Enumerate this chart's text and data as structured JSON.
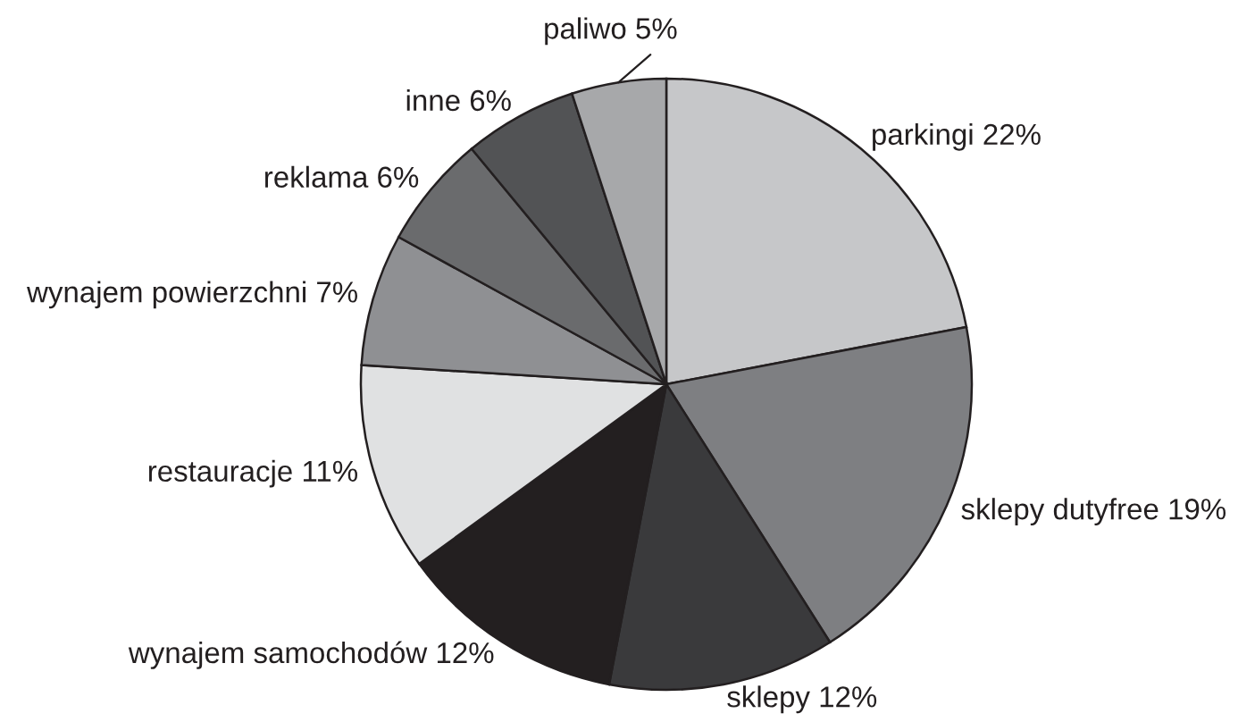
{
  "chart_data": {
    "type": "pie",
    "categories": [
      "parkingi",
      "sklepy dutyfree",
      "sklepy",
      "wynajem samochodów",
      "restauracje",
      "wynajem powierzchni",
      "reklama",
      "inne",
      "paliwo"
    ],
    "values": [
      22,
      19,
      12,
      12,
      11,
      7,
      6,
      6,
      5
    ],
    "colors": [
      "#c6c7c9",
      "#7e7f82",
      "#3a3a3c",
      "#231f20",
      "#e0e1e2",
      "#8f9093",
      "#6a6b6d",
      "#525355",
      "#a7a8aa"
    ],
    "value_labels": [
      "22%",
      "19%",
      "12%",
      "12%",
      "11%",
      "7%",
      "6%",
      "6%",
      "5%"
    ]
  }
}
